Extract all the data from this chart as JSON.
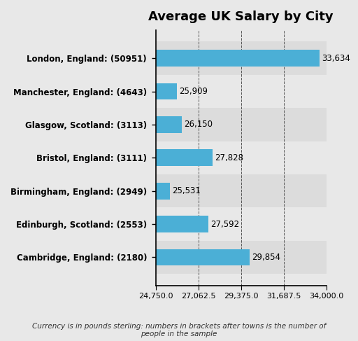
{
  "title": "Average UK Salary by City",
  "categories": [
    "Cambridge, England: (2180)",
    "Edinburgh, Scotland: (2553)",
    "Birmingham, England: (2949)",
    "Bristol, England: (3111)",
    "Glasgow, Scotland: (3113)",
    "Manchester, England: (4643)",
    "London, England: (50951)"
  ],
  "values": [
    29854,
    27592,
    25531,
    27828,
    26150,
    25909,
    33634
  ],
  "value_labels": [
    "29,854",
    "27,592",
    "25,531",
    "27,828",
    "26,150",
    "25,909",
    "33,634"
  ],
  "bar_color": "#4BAFD6",
  "bg_color": "#E8E8E8",
  "row_colors": [
    "#DCDCDC",
    "#E8E8E8",
    "#DCDCDC",
    "#E8E8E8",
    "#DCDCDC",
    "#E8E8E8",
    "#DCDCDC"
  ],
  "xlim": [
    24750,
    34000
  ],
  "xticks": [
    24750.0,
    27062.5,
    29375.0,
    31687.5,
    34000.0
  ],
  "footnote": "Currency is in pounds sterling: numbers in brackets after towns is the number of\npeople in the sample"
}
